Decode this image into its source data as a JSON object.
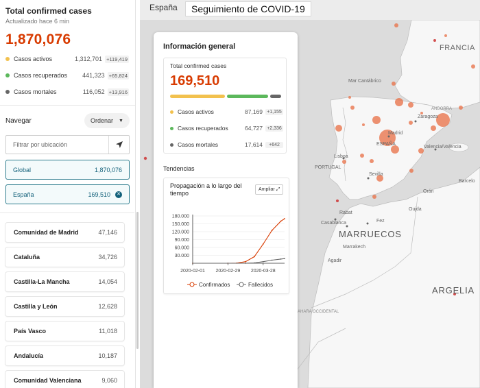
{
  "sidebar": {
    "title": "Total confirmed cases",
    "updated": "Actualizado hace 6 min",
    "total": "1,870,076",
    "stats": [
      {
        "label": "Casos activos",
        "value": "1,312,701",
        "delta": "+119,419",
        "color": "#f2c14e"
      },
      {
        "label": "Casos recuperados",
        "value": "441,323",
        "delta": "+65,824",
        "color": "#5cb85c"
      },
      {
        "label": "Casos mortales",
        "value": "116,052",
        "delta": "+13,916",
        "color": "#666666"
      }
    ],
    "nav_label": "Navegar",
    "order_label": "Ordenar",
    "filter_placeholder": "Filtrar por ubicación",
    "selected": [
      {
        "name": "Global",
        "value": "1,870,076"
      },
      {
        "name": "España",
        "value": "169,510"
      }
    ],
    "regions": [
      {
        "name": "Comunidad de Madrid",
        "value": "47,146"
      },
      {
        "name": "Cataluña",
        "value": "34,726"
      },
      {
        "name": "Castilla-La Mancha",
        "value": "14,054"
      },
      {
        "name": "Castilla y León",
        "value": "12,628"
      },
      {
        "name": "País Vasco",
        "value": "11,018"
      },
      {
        "name": "Andalucía",
        "value": "10,187"
      },
      {
        "name": "Comunidad Valenciana",
        "value": "9,060"
      }
    ]
  },
  "map": {
    "country_chip": "España",
    "title": "Seguimiento de COVID-19",
    "labels": {
      "francia": "FRANCIA",
      "espana": "ESPAÑA",
      "portugal": "PORTUGAL",
      "marruecos": "MARRUECOS",
      "argelia": "ARGELIA",
      "mar_cantabrico": "Mar Cantábrico",
      "madrid": "Madrid",
      "zaragoza": "Zaragoza",
      "andorra": "ANDORRA",
      "valencia": "Valencia/València",
      "lisboa": "Lisboa",
      "sevilla": "Sevilla",
      "oran": "Orán",
      "barcelona": "Barcelo",
      "rabat": "Rabat",
      "casablanca": "Casablanca",
      "fez": "Fez",
      "oujda": "Oujda",
      "marrakech": "Marrakech",
      "agadir": "Agadir",
      "sahara": "SAHARA OCCIDENTAL"
    }
  },
  "info": {
    "title": "Información general",
    "card_label": "Total confirmed cases",
    "total": "169,510",
    "bar_fractions": {
      "active": 0.514,
      "recovered": 0.382,
      "deaths": 0.104
    },
    "stats": [
      {
        "label": "Casos activos",
        "value": "87,169",
        "delta": "+1,155",
        "color": "#f2c14e"
      },
      {
        "label": "Casos recuperados",
        "value": "64,727",
        "delta": "+2,336",
        "color": "#5cb85c"
      },
      {
        "label": "Casos mortales",
        "value": "17,614",
        "delta": "+642",
        "color": "#666666"
      }
    ],
    "trend_label": "Tendencias",
    "chart_title": "Propagación a lo largo del tiempo",
    "expand_label": "Ampliar"
  },
  "chart_data": {
    "type": "line",
    "title": "Propagación a lo largo del tiempo",
    "x_ticks": [
      "2020-02-01",
      "2020-02-29",
      "2020-03-28"
    ],
    "y_ticks": [
      "180.000",
      "150.000",
      "120.000",
      "90.000",
      "60.000",
      "30.000"
    ],
    "ylim": [
      0,
      180000
    ],
    "series": [
      {
        "name": "Confirmados",
        "color": "#d83b01",
        "points": [
          [
            "2020-02-01",
            0
          ],
          [
            "2020-02-29",
            50
          ],
          [
            "2020-03-07",
            500
          ],
          [
            "2020-03-14",
            6000
          ],
          [
            "2020-03-21",
            25000
          ],
          [
            "2020-03-28",
            73000
          ],
          [
            "2020-04-04",
            125000
          ],
          [
            "2020-04-11",
            160000
          ],
          [
            "2020-04-14",
            169510
          ]
        ]
      },
      {
        "name": "Fallecidos",
        "color": "#666666",
        "points": [
          [
            "2020-02-01",
            0
          ],
          [
            "2020-02-29",
            0
          ],
          [
            "2020-03-14",
            200
          ],
          [
            "2020-03-21",
            1400
          ],
          [
            "2020-03-28",
            5900
          ],
          [
            "2020-04-04",
            11700
          ],
          [
            "2020-04-11",
            16000
          ],
          [
            "2020-04-14",
            17614
          ]
        ]
      }
    ]
  }
}
